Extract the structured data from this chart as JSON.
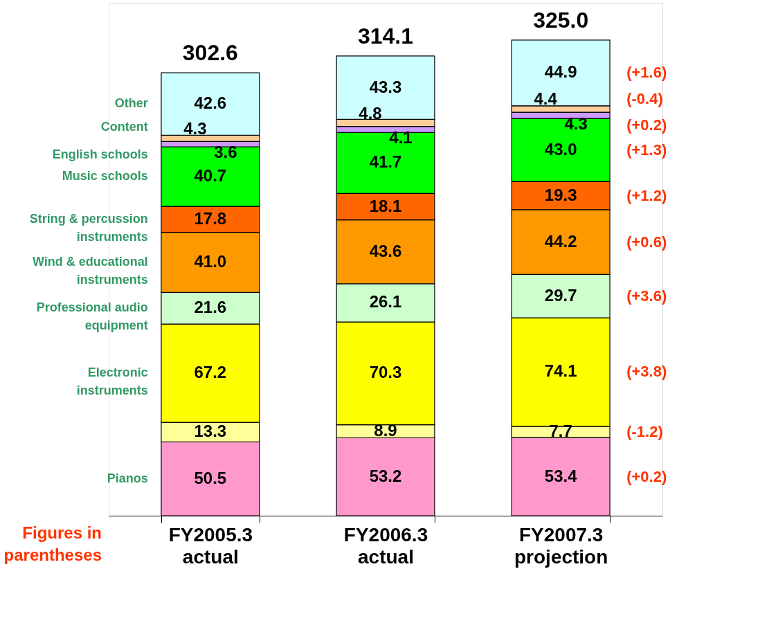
{
  "chart_data": {
    "type": "bar",
    "stacked": true,
    "categories": [
      "FY2005.3 actual",
      "FY2006.3 actual",
      "FY2007.3 projection"
    ],
    "series": [
      {
        "name": "Pianos",
        "color": "#ff99cc",
        "values": [
          50.5,
          53.2,
          53.4
        ],
        "value_labels": [
          "50.5",
          "53.2",
          "53.4"
        ]
      },
      {
        "color": "#ffff99",
        "values": [
          13.3,
          8.9,
          7.7
        ],
        "value_labels": [
          "13.3",
          "8.9",
          "7.7"
        ]
      },
      {
        "name": "Electronic\ninstruments",
        "color": "#ffff00",
        "values": [
          67.2,
          70.3,
          74.1
        ],
        "value_labels": [
          "67.2",
          "70.3",
          "74.1"
        ]
      },
      {
        "name": "Professional audio\nequipment",
        "color": "#ccffcc",
        "values": [
          21.6,
          26.1,
          29.7
        ],
        "value_labels": [
          "21.6",
          "26.1",
          "29.7"
        ]
      },
      {
        "name": "Wind & educational\ninstruments",
        "color": "#ff9900",
        "values": [
          41.0,
          43.6,
          44.2
        ],
        "value_labels": [
          "41.0",
          "43.6",
          "44.2"
        ]
      },
      {
        "name": "String & percussion\ninstruments",
        "color": "#ff6600",
        "values": [
          17.8,
          18.1,
          19.3
        ],
        "value_labels": [
          "17.8",
          "18.1",
          "19.3"
        ]
      },
      {
        "name": "Music schools",
        "color": "#00ff00",
        "values": [
          40.7,
          41.7,
          43.0
        ],
        "value_labels": [
          "40.7",
          "41.7",
          "43.0"
        ]
      },
      {
        "name": "English schools",
        "color": "#cc99ff",
        "values": [
          3.6,
          4.1,
          4.3
        ],
        "value_labels": [
          "3.6",
          "4.1",
          "4.3"
        ]
      },
      {
        "name": "Content",
        "color": "#ffcc99",
        "values": [
          4.3,
          4.8,
          4.4
        ],
        "value_labels": [
          "4.3",
          "4.8",
          "4.4"
        ]
      },
      {
        "name": "Other",
        "color": "#ccffff",
        "values": [
          42.6,
          43.3,
          44.9
        ],
        "value_labels": [
          "42.6",
          "43.3",
          "44.9"
        ]
      }
    ],
    "totals": [
      "302.6",
      "314.1",
      "325.0"
    ],
    "tick_labels": "x",
    "annotations": [
      "(+0.2)",
      "(-1.2)",
      "(+3.8)",
      "(+3.6)",
      "(+0.6)",
      "(+1.2)",
      "(+1.3)",
      "(+0.2)",
      "(-0.4)",
      "(+1.6)",
      "Figures in parentheses"
    ]
  }
}
